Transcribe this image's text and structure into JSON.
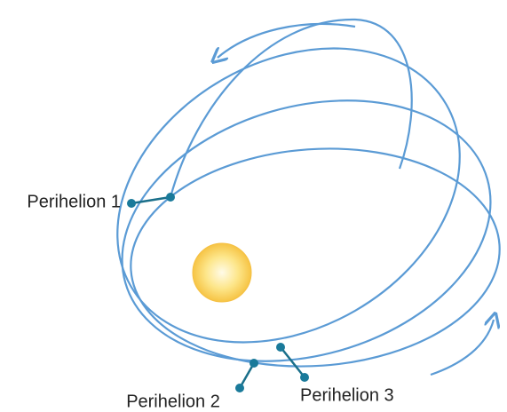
{
  "labels": [
    "Perihelion 1",
    "Perihelion 2",
    "Perihelion 3"
  ]
}
